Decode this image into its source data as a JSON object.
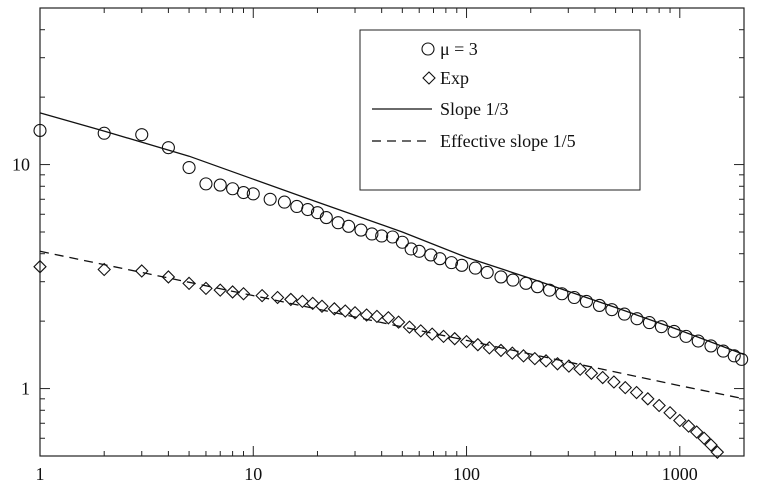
{
  "chart_data": {
    "type": "scatter",
    "title": "",
    "xlabel": "",
    "ylabel": "",
    "x_scale": "log",
    "y_scale": "log",
    "xlim": [
      1,
      2000
    ],
    "ylim": [
      0.5,
      50
    ],
    "x_ticks": [
      1,
      10,
      100,
      1000
    ],
    "x_tick_labels": [
      "1",
      "10",
      "100",
      "1000"
    ],
    "y_ticks": [
      1,
      10
    ],
    "y_tick_labels": [
      "1",
      "10"
    ],
    "grid": false,
    "legend_position": "top-right",
    "series": [
      {
        "name": "μ = 3",
        "kind": "scatter",
        "marker": "circle",
        "points": [
          [
            1,
            14.2
          ],
          [
            2,
            13.8
          ],
          [
            3,
            13.6
          ],
          [
            4,
            11.9
          ],
          [
            5,
            9.7
          ],
          [
            6,
            8.2
          ],
          [
            7,
            8.1
          ],
          [
            8,
            7.8
          ],
          [
            9,
            7.5
          ],
          [
            10,
            7.4
          ],
          [
            12,
            7.0
          ],
          [
            14,
            6.8
          ],
          [
            16,
            6.5
          ],
          [
            18,
            6.3
          ],
          [
            20,
            6.1
          ],
          [
            22,
            5.8
          ],
          [
            25,
            5.5
          ],
          [
            28,
            5.3
          ],
          [
            32,
            5.1
          ],
          [
            36,
            4.9
          ],
          [
            40,
            4.8
          ],
          [
            45,
            4.75
          ],
          [
            50,
            4.5
          ],
          [
            55,
            4.2
          ],
          [
            60,
            4.1
          ],
          [
            68,
            3.95
          ],
          [
            75,
            3.8
          ],
          [
            85,
            3.65
          ],
          [
            95,
            3.55
          ],
          [
            110,
            3.45
          ],
          [
            125,
            3.3
          ],
          [
            145,
            3.15
          ],
          [
            165,
            3.05
          ],
          [
            190,
            2.95
          ],
          [
            215,
            2.85
          ],
          [
            245,
            2.75
          ],
          [
            280,
            2.65
          ],
          [
            320,
            2.55
          ],
          [
            365,
            2.45
          ],
          [
            420,
            2.35
          ],
          [
            480,
            2.25
          ],
          [
            550,
            2.15
          ],
          [
            630,
            2.05
          ],
          [
            720,
            1.97
          ],
          [
            820,
            1.89
          ],
          [
            940,
            1.8
          ],
          [
            1070,
            1.71
          ],
          [
            1220,
            1.63
          ],
          [
            1400,
            1.55
          ],
          [
            1600,
            1.47
          ],
          [
            1800,
            1.4
          ],
          [
            1950,
            1.35
          ]
        ]
      },
      {
        "name": "Exp",
        "kind": "scatter",
        "marker": "diamond",
        "points": [
          [
            1,
            3.5
          ],
          [
            2,
            3.4
          ],
          [
            3,
            3.35
          ],
          [
            4,
            3.15
          ],
          [
            5,
            2.95
          ],
          [
            6,
            2.8
          ],
          [
            7,
            2.75
          ],
          [
            8,
            2.7
          ],
          [
            9,
            2.65
          ],
          [
            11,
            2.6
          ],
          [
            13,
            2.55
          ],
          [
            15,
            2.5
          ],
          [
            17,
            2.45
          ],
          [
            19,
            2.4
          ],
          [
            21,
            2.33
          ],
          [
            24,
            2.27
          ],
          [
            27,
            2.22
          ],
          [
            30,
            2.18
          ],
          [
            34,
            2.13
          ],
          [
            38,
            2.1
          ],
          [
            43,
            2.07
          ],
          [
            48,
            1.98
          ],
          [
            54,
            1.88
          ],
          [
            61,
            1.81
          ],
          [
            69,
            1.75
          ],
          [
            78,
            1.71
          ],
          [
            88,
            1.67
          ],
          [
            100,
            1.62
          ],
          [
            113,
            1.57
          ],
          [
            128,
            1.52
          ],
          [
            145,
            1.48
          ],
          [
            164,
            1.44
          ],
          [
            185,
            1.4
          ],
          [
            209,
            1.36
          ],
          [
            236,
            1.33
          ],
          [
            267,
            1.29
          ],
          [
            302,
            1.26
          ],
          [
            341,
            1.22
          ],
          [
            385,
            1.17
          ],
          [
            435,
            1.12
          ],
          [
            491,
            1.07
          ],
          [
            555,
            1.01
          ],
          [
            627,
            0.96
          ],
          [
            708,
            0.9
          ],
          [
            800,
            0.84
          ],
          [
            900,
            0.78
          ],
          [
            1000,
            0.72
          ],
          [
            1100,
            0.68
          ],
          [
            1200,
            0.64
          ],
          [
            1300,
            0.6
          ],
          [
            1400,
            0.56
          ],
          [
            1500,
            0.52
          ]
        ]
      },
      {
        "name": "Slope 1/3",
        "kind": "line",
        "style": "solid",
        "points": [
          [
            1,
            17.0
          ],
          [
            2,
            14.1
          ],
          [
            5,
            10.9
          ],
          [
            10,
            8.6
          ],
          [
            20,
            6.8
          ],
          [
            50,
            5.0
          ],
          [
            100,
            3.85
          ],
          [
            200,
            3.1
          ],
          [
            500,
            2.3
          ],
          [
            1000,
            1.82
          ],
          [
            2000,
            1.42
          ]
        ]
      },
      {
        "name": "Effective slope 1/5",
        "kind": "line",
        "style": "dashed",
        "points": [
          [
            1,
            4.1
          ],
          [
            10,
            2.6
          ],
          [
            100,
            1.64
          ],
          [
            1000,
            1.03
          ],
          [
            2000,
            0.9
          ]
        ]
      }
    ]
  }
}
